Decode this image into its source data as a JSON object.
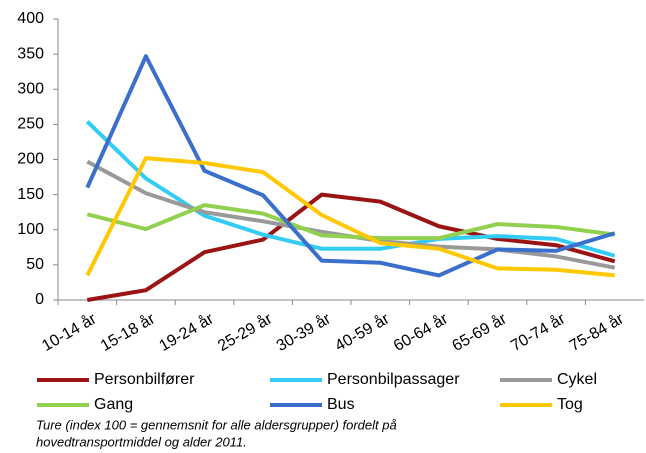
{
  "chart_data": {
    "type": "line",
    "categories": [
      "10-14 år",
      "15-18 år",
      "19-24 år",
      "25-29 år",
      "30-39 år",
      "40-59 år",
      "60-64 år",
      "65-69 år",
      "70-74 år",
      "75-84 år"
    ],
    "series": [
      {
        "name": "Personbilfører",
        "color": "#9a1414",
        "values": [
          0,
          14,
          68,
          86,
          150,
          140,
          105,
          87,
          78,
          55
        ]
      },
      {
        "name": "Personbilpassager",
        "color": "#33ccf5",
        "values": [
          254,
          173,
          120,
          93,
          73,
          73,
          87,
          91,
          87,
          63
        ]
      },
      {
        "name": "Cykel",
        "color": "#999999",
        "values": [
          197,
          152,
          125,
          112,
          97,
          84,
          76,
          72,
          62,
          46
        ]
      },
      {
        "name": "Gang",
        "color": "#92d050",
        "values": [
          122,
          101,
          135,
          123,
          92,
          88,
          88,
          108,
          104,
          93
        ]
      },
      {
        "name": "Bus",
        "color": "#3a6fcb",
        "values": [
          160,
          347,
          184,
          149,
          56,
          53,
          35,
          72,
          70,
          95
        ]
      },
      {
        "name": "Tog",
        "color": "#ffc800",
        "values": [
          35,
          202,
          195,
          182,
          121,
          81,
          73,
          45,
          43,
          35
        ]
      }
    ],
    "ylim": [
      0,
      400
    ],
    "yticks": [
      0,
      50,
      100,
      150,
      200,
      250,
      300,
      350,
      400
    ],
    "grid": false,
    "caption": [
      "Ture (index 100 = gennemsnit for alle aldersgrupper) fordelt på",
      "hovedtransportmiddel og alder 2011."
    ]
  }
}
